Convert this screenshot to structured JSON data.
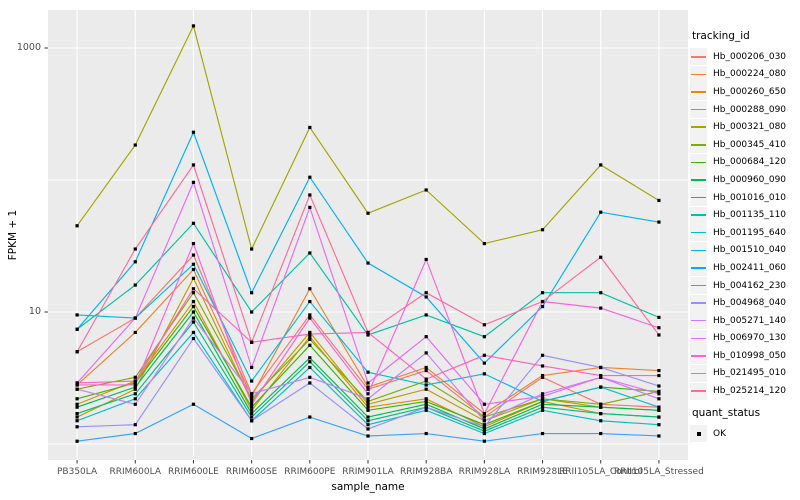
{
  "chart_data": {
    "type": "line",
    "title": "",
    "xlabel": "sample_name",
    "ylabel": "FPKM + 1",
    "y_scale": "log10",
    "grid": true,
    "panel_bg": "#EBEBEB",
    "grid_color": "#FFFFFF",
    "point_color": "#000000",
    "axis_text_color": "#4D4D4D",
    "y_ticks": [
      {
        "value": 10,
        "label": "10"
      },
      {
        "value": 1000,
        "label": "1000"
      }
    ],
    "y_gridlines": [
      1,
      10,
      100,
      1000
    ],
    "ylim": [
      0.76,
      1950
    ],
    "categories": [
      "PB350LA",
      "RRIM600LA",
      "RRIM600LE",
      "RRIM600SE",
      "RRIM600PE",
      "RRIM901LA",
      "RRIM928BA",
      "RRIM928LA",
      "RRIM928LE",
      "RRII105LA_Control",
      "RRII105LA_Stressed"
    ],
    "legend": {
      "title": "tracking_id",
      "position": "right"
    },
    "legend2": {
      "title": "quant_status",
      "items": [
        {
          "label": "OK",
          "marker": "black-square"
        }
      ]
    },
    "series": [
      {
        "name": "Hb_000206_030",
        "color": "#F8766D",
        "values": [
          5.0,
          9.0,
          27,
          2.4,
          9.5,
          2.6,
          3.6,
          1.6,
          3.2,
          2.0,
          1.9
        ]
      },
      {
        "name": "Hb_000224_080",
        "color": "#EA8331",
        "values": [
          2.8,
          7.0,
          21,
          2.3,
          15,
          2.7,
          3.8,
          1.7,
          3.3,
          3.8,
          3.6
        ]
      },
      {
        "name": "Hb_000260_650",
        "color": "#D89000",
        "values": [
          2.0,
          3.0,
          12,
          1.8,
          6.5,
          1.9,
          2.2,
          1.35,
          2.1,
          1.7,
          1.6
        ]
      },
      {
        "name": "Hb_000288_090",
        "color": "#C09B00",
        "values": [
          1.6,
          2.6,
          18,
          2.1,
          7.0,
          2.0,
          2.6,
          1.5,
          2.2,
          1.9,
          1.8
        ]
      },
      {
        "name": "Hb_000321_080",
        "color": "#A3A500",
        "values": [
          45,
          184,
          1470,
          30,
          250,
          56,
          84,
          33,
          42,
          130,
          70
        ]
      },
      {
        "name": "Hb_000345_410",
        "color": "#7CAE00",
        "values": [
          2.6,
          3.2,
          14,
          2.2,
          6.2,
          2.1,
          3.0,
          1.6,
          2.2,
          2.0,
          2.5
        ]
      },
      {
        "name": "Hb_000684_120",
        "color": "#39B600",
        "values": [
          2.2,
          2.9,
          11,
          1.9,
          5.6,
          1.8,
          2.1,
          1.4,
          2.1,
          2.7,
          2.5
        ]
      },
      {
        "name": "Hb_000960_090",
        "color": "#00BB4E",
        "values": [
          1.9,
          2.7,
          10,
          1.7,
          4.5,
          1.6,
          2.0,
          1.3,
          2.0,
          1.9,
          1.8
        ]
      },
      {
        "name": "Hb_001016_010",
        "color": "#00BF7D",
        "values": [
          1.7,
          2.4,
          8.4,
          1.6,
          4.2,
          1.5,
          1.9,
          1.25,
          1.9,
          1.7,
          1.6
        ]
      },
      {
        "name": "Hb_001135_110",
        "color": "#00C1A3",
        "values": [
          7.4,
          16,
          47,
          10,
          28,
          6.7,
          9.5,
          6.5,
          14,
          14,
          9.1
        ]
      },
      {
        "name": "Hb_001195_640",
        "color": "#00BFC4",
        "values": [
          1.5,
          2.2,
          7.0,
          1.5,
          3.8,
          1.4,
          1.8,
          1.2,
          1.8,
          1.5,
          1.4
        ]
      },
      {
        "name": "Hb_001510_040",
        "color": "#00BAE0",
        "values": [
          9.5,
          9.0,
          23,
          3.0,
          12,
          3.5,
          2.8,
          3.4,
          2.1,
          2.7,
          1.9
        ]
      },
      {
        "name": "Hb_002411_060",
        "color": "#00B0F6",
        "values": [
          7.4,
          24,
          230,
          14,
          105,
          23.5,
          13,
          4.1,
          11,
          57,
          48
        ]
      },
      {
        "name": "Hb_004162_230",
        "color": "#35A2FF",
        "values": [
          1.05,
          1.2,
          2.0,
          1.1,
          1.6,
          1.15,
          1.2,
          1.05,
          1.2,
          1.2,
          1.15
        ]
      },
      {
        "name": "Hb_004968_040",
        "color": "#9590FF",
        "values": [
          1.35,
          1.4,
          6.3,
          1.5,
          2.9,
          1.3,
          1.9,
          1.35,
          4.7,
          3.8,
          2.75
        ]
      },
      {
        "name": "Hb_005271_140",
        "color": "#C77CFF",
        "values": [
          2.6,
          2.0,
          9.0,
          2.4,
          3.2,
          2.2,
          4.9,
          1.5,
          2.4,
          3.2,
          2.2
        ]
      },
      {
        "name": "Hb_006970_130",
        "color": "#E76BF3",
        "values": [
          2.9,
          9.0,
          96,
          3.8,
          62,
          2.9,
          6.5,
          2.0,
          2.3,
          3.2,
          2.4
        ]
      },
      {
        "name": "Hb_010998_050",
        "color": "#FA62DB",
        "values": [
          2.8,
          2.8,
          33,
          2.0,
          9.0,
          2.4,
          25,
          1.7,
          12,
          10.7,
          7.6
        ]
      },
      {
        "name": "Hb_021495_010",
        "color": "#FF62BC",
        "values": [
          2.9,
          3.0,
          15,
          5.9,
          6.8,
          7.0,
          3.1,
          4.7,
          3.9,
          3.3,
          3.3
        ]
      },
      {
        "name": "Hb_025214_120",
        "color": "#FF6A98",
        "values": [
          5.0,
          30,
          130,
          5.9,
          77,
          7.0,
          14,
          8.0,
          12,
          26,
          6.7
        ]
      }
    ]
  }
}
